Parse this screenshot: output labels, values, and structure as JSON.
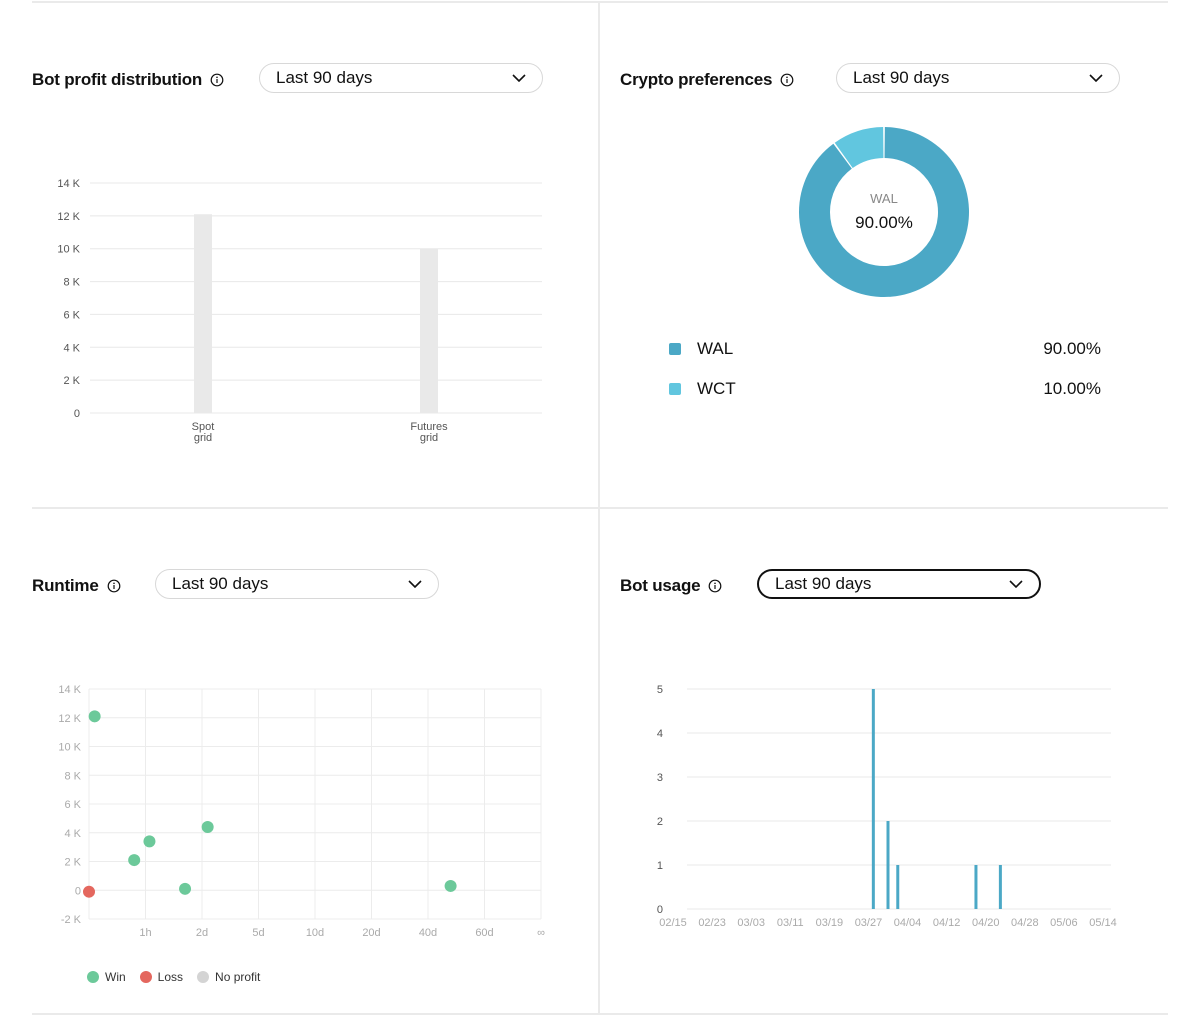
{
  "colors": {
    "win": "#6cc99a",
    "loss": "#e4675e",
    "noprofit": "#d4d4d4",
    "wal": "#4ba8c6",
    "wct": "#61c6df",
    "bar_gray": "#e9e9e9",
    "usage_bar": "#4ba8c6"
  },
  "panels": {
    "profit": {
      "title": "Bot profit distribution",
      "range": "Last 90 days",
      "icon": "info-icon"
    },
    "crypto": {
      "title": "Crypto preferences",
      "range": "Last 90 days",
      "icon": "info-icon"
    },
    "runtime": {
      "title": "Runtime",
      "range": "Last 90 days",
      "icon": "info-icon"
    },
    "usage": {
      "title": "Bot usage",
      "range": "Last 90 days",
      "icon": "info-icon"
    }
  },
  "chart_data": [
    {
      "id": "profit",
      "type": "bar",
      "categories": [
        [
          "Spot",
          "grid"
        ],
        [
          "Futures",
          "grid"
        ]
      ],
      "values": [
        12100,
        10000
      ],
      "ylim": [
        0,
        14000
      ],
      "yticks": [
        0,
        2000,
        4000,
        6000,
        8000,
        10000,
        12000,
        14000
      ],
      "ytick_labels": [
        "0",
        "2 K",
        "4 K",
        "6 K",
        "8 K",
        "10 K",
        "12 K",
        "14 K"
      ],
      "grid": true
    },
    {
      "id": "crypto",
      "type": "pie",
      "donut": true,
      "slices": [
        {
          "name": "WAL",
          "value": 90.0,
          "label": "90.00%",
          "color": "#4ba8c6"
        },
        {
          "name": "WCT",
          "value": 10.0,
          "label": "10.00%",
          "color": "#61c6df"
        }
      ],
      "center_name": "WAL",
      "center_value": "90.00%",
      "legend": "below"
    },
    {
      "id": "runtime",
      "type": "scatter",
      "xticks": [
        "1h",
        "2d",
        "5d",
        "10d",
        "20d",
        "40d",
        "60d",
        "∞"
      ],
      "yticks": [
        -2000,
        0,
        2000,
        4000,
        6000,
        8000,
        10000,
        12000,
        14000
      ],
      "ytick_labels": [
        "-2 K",
        "0",
        "2 K",
        "4 K",
        "6 K",
        "8 K",
        "10 K",
        "12 K",
        "14 K"
      ],
      "ylim": [
        -2000,
        14000
      ],
      "xrange": [
        0,
        8
      ],
      "points": [
        {
          "x": 0.1,
          "y": 12100,
          "group": "win"
        },
        {
          "x": 0.8,
          "y": 2100,
          "group": "win"
        },
        {
          "x": 1.07,
          "y": 3400,
          "group": "win"
        },
        {
          "x": 1.7,
          "y": 100,
          "group": "win"
        },
        {
          "x": 2.1,
          "y": 4400,
          "group": "win"
        },
        {
          "x": 6.4,
          "y": 300,
          "group": "win"
        },
        {
          "x": 0.0,
          "y": -100,
          "group": "loss"
        }
      ],
      "legend": [
        {
          "key": "win",
          "label": "Win"
        },
        {
          "key": "loss",
          "label": "Loss"
        },
        {
          "key": "noprofit",
          "label": "No profit"
        }
      ],
      "grid": true
    },
    {
      "id": "usage",
      "type": "bar",
      "xticks": [
        "02/15",
        "02/23",
        "03/03",
        "03/11",
        "03/19",
        "03/27",
        "04/04",
        "04/12",
        "04/20",
        "04/28",
        "05/06",
        "05/14"
      ],
      "x_start": "02/15",
      "x_end": "05/14",
      "dates": [
        "03/28",
        "03/31",
        "04/02",
        "04/18",
        "04/23"
      ],
      "values": [
        5,
        2,
        1,
        1,
        1
      ],
      "ylim": [
        0,
        5
      ],
      "yticks": [
        0,
        1,
        2,
        3,
        4,
        5
      ],
      "grid": true
    }
  ]
}
